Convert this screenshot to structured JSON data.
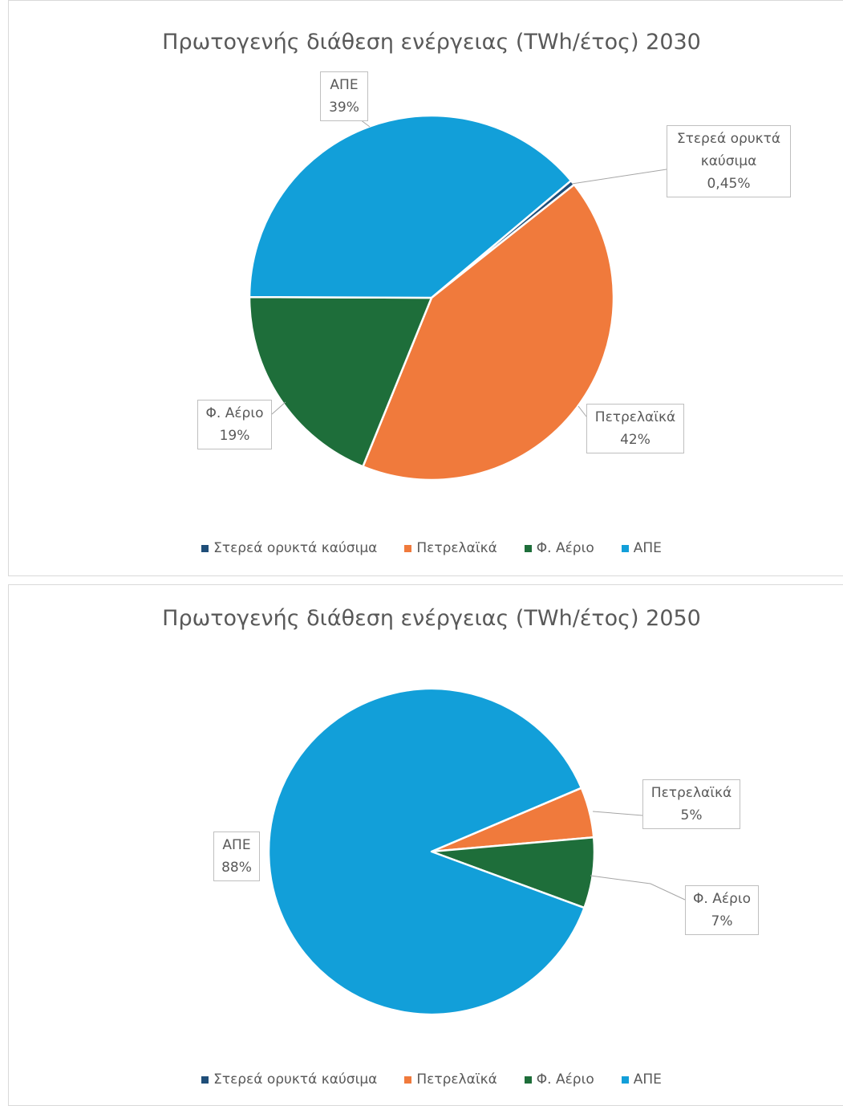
{
  "chart_data": [
    {
      "type": "pie",
      "title": "Πρωτογενής διάθεση ενέργειας (TWh/έτος) 2030",
      "categories": [
        "Στερεά ορυκτά καύσιμα",
        "Πετρελαϊκά",
        "Φ. Αέριο",
        "ΑΠΕ"
      ],
      "colors": [
        "#1f4e79",
        "#f07a3c",
        "#1e6e3a",
        "#129fd9"
      ],
      "values": [
        0.45,
        42,
        19,
        39
      ],
      "value_labels": [
        "0,45%",
        "42%",
        "19%",
        "39%"
      ],
      "legend": "bottom"
    },
    {
      "type": "pie",
      "title": "Πρωτογενής διάθεση ενέργειας (TWh/έτος) 2050",
      "categories": [
        "Στερεά ορυκτά καύσιμα",
        "Πετρελαϊκά",
        "Φ. Αέριο",
        "ΑΠΕ"
      ],
      "colors": [
        "#1f4e79",
        "#f07a3c",
        "#1e6e3a",
        "#129fd9"
      ],
      "values": [
        0,
        5,
        7,
        88
      ],
      "value_labels": [
        null,
        "5%",
        "7%",
        "88%"
      ],
      "legend": "bottom"
    }
  ]
}
